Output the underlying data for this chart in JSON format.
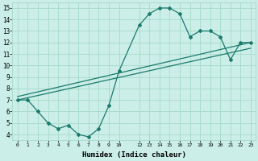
{
  "xlabel": "Humidex (Indice chaleur)",
  "bg_color": "#cceee8",
  "line_color": "#1a7a6e",
  "grid_color": "#aaddcc",
  "xlim": [
    -0.5,
    23.5
  ],
  "ylim": [
    3.5,
    15.5
  ],
  "yticks": [
    4,
    5,
    6,
    7,
    8,
    9,
    10,
    11,
    12,
    13,
    14,
    15
  ],
  "xtick_positions": [
    0,
    1,
    2,
    3,
    4,
    5,
    6,
    7,
    8,
    9,
    10,
    12,
    13,
    14,
    15,
    16,
    17,
    18,
    19,
    20,
    21,
    22,
    23
  ],
  "xtick_labels": [
    "0",
    "1",
    "2",
    "3",
    "4",
    "5",
    "6",
    "7",
    "8",
    "9",
    "10",
    "12",
    "13",
    "14",
    "15",
    "16",
    "17",
    "18",
    "19",
    "20",
    "21",
    "22",
    "23"
  ],
  "series1_x": [
    0,
    1,
    2,
    3,
    4,
    5,
    6,
    7,
    8,
    9,
    10,
    12,
    13,
    14,
    15,
    16,
    17,
    18,
    19,
    20,
    21,
    22,
    23
  ],
  "series1_y": [
    7.0,
    7.0,
    6.0,
    5.0,
    4.5,
    4.8,
    4.0,
    3.8,
    4.5,
    6.5,
    9.5,
    13.5,
    14.5,
    15.0,
    15.0,
    14.5,
    12.5,
    13.0,
    13.0,
    12.5,
    10.5,
    12.0,
    12.0
  ],
  "trend1_x": [
    0,
    23
  ],
  "trend1_y": [
    7.0,
    11.5
  ],
  "trend2_x": [
    0,
    23
  ],
  "trend2_y": [
    7.3,
    12.0
  ]
}
